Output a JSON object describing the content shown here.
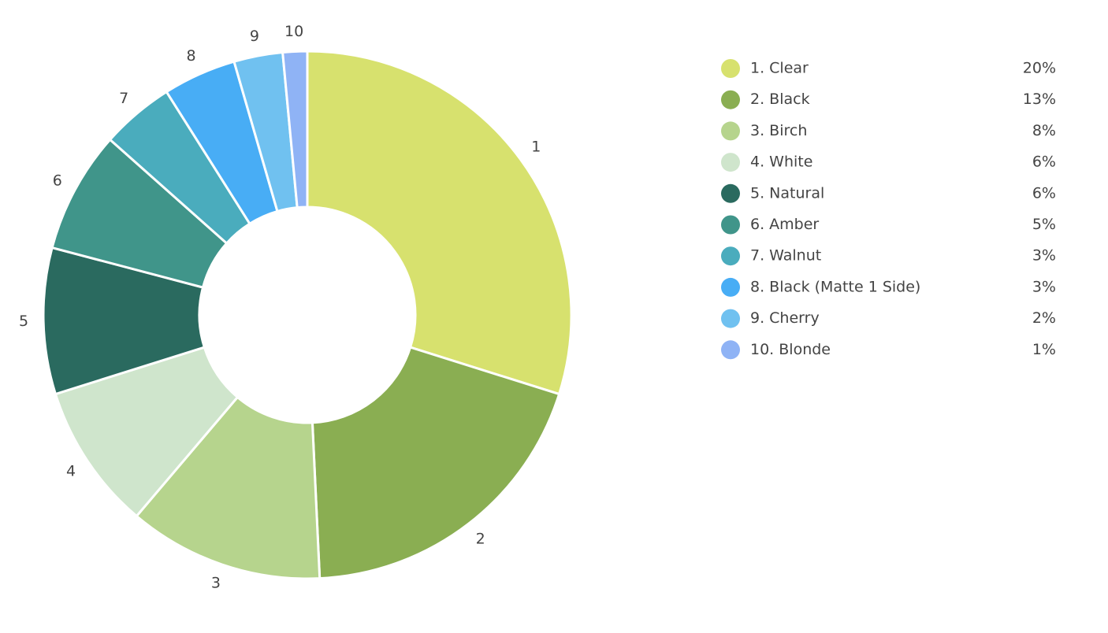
{
  "chart_data": {
    "type": "donut",
    "categories": [
      "1. Clear",
      "2. Black",
      "3. Birch",
      "4. White",
      "5. Natural",
      "6. Amber",
      "7. Walnut",
      "8. Black (Matte 1 Side)",
      "9. Cherry",
      "10. Blonde"
    ],
    "slice_labels": [
      "1",
      "2",
      "3",
      "4",
      "5",
      "6",
      "7",
      "8",
      "9",
      "10"
    ],
    "values": [
      20,
      13,
      8,
      6,
      6,
      5,
      3,
      3,
      2,
      1
    ],
    "value_labels": [
      "20%",
      "13%",
      "8%",
      "6%",
      "6%",
      "5%",
      "3%",
      "3%",
      "2%",
      "1%"
    ],
    "colors": [
      "#d7e16e",
      "#8aae52",
      "#b6d48d",
      "#cfe5cc",
      "#2a6a5f",
      "#40958a",
      "#4aacbd",
      "#48adf5",
      "#70c1f0",
      "#8fb3f5"
    ],
    "legend": "right"
  }
}
